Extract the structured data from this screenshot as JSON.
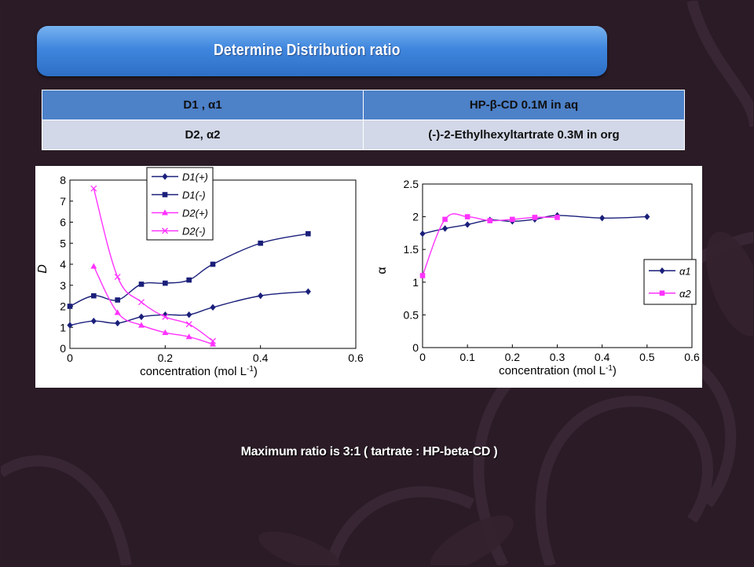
{
  "slide": {
    "title": "Determine Distribution ratio",
    "conclusion": "Maximum ratio is 3:1 ( tartrate : HP-beta-CD )",
    "colors": {
      "background": "#2a1b26",
      "banner": "#3f86de",
      "table_header": "#4d81c8",
      "table_row": "#d2d8e8"
    }
  },
  "table": {
    "rows": [
      [
        "D1 , α1",
        "HP-β-CD 0.1M  in aq"
      ],
      [
        "D2, α2",
        "(-)-2-Ethylhexyltartrate 0.3M  in org"
      ]
    ]
  },
  "chart_data": [
    {
      "type": "line",
      "xlabel": "concentration (mol L-1)",
      "ylabel": "D",
      "xlim": [
        0,
        0.6
      ],
      "ylim": [
        0,
        8
      ],
      "xticks": [
        0,
        0.2,
        0.4,
        0.6
      ],
      "xtick_labels": [
        "0",
        "0.2",
        "0.4",
        "0.6"
      ],
      "yticks": [
        0,
        1,
        2,
        3,
        4,
        5,
        6,
        7,
        8
      ],
      "ytick_labels": [
        "0",
        "1",
        "2",
        "3",
        "4",
        "5",
        "6",
        "7",
        "8"
      ],
      "legend_position": "top-right",
      "series": [
        {
          "name": "D1(+)",
          "color": "#1a1f7a",
          "marker": "diamond",
          "x": [
            0,
            0.05,
            0.1,
            0.15,
            0.2,
            0.25,
            0.3,
            0.4,
            0.5
          ],
          "y": [
            1.1,
            1.3,
            1.2,
            1.5,
            1.6,
            1.6,
            1.95,
            2.5,
            2.7
          ]
        },
        {
          "name": "D1(-)",
          "color": "#1a1f7a",
          "marker": "square",
          "x": [
            0,
            0.05,
            0.1,
            0.15,
            0.2,
            0.25,
            0.3,
            0.4,
            0.5
          ],
          "y": [
            2.0,
            2.5,
            2.3,
            3.05,
            3.1,
            3.25,
            4.0,
            5.0,
            5.45
          ]
        },
        {
          "name": "D2(+)",
          "color": "#ff33ff",
          "marker": "triangle",
          "x": [
            0.05,
            0.1,
            0.15,
            0.2,
            0.25,
            0.3
          ],
          "y": [
            3.9,
            1.7,
            1.1,
            0.75,
            0.55,
            0.2
          ]
        },
        {
          "name": "D2(-)",
          "color": "#ff33ff",
          "marker": "x",
          "x": [
            0.05,
            0.1,
            0.15,
            0.2,
            0.25,
            0.3
          ],
          "y": [
            7.6,
            3.4,
            2.2,
            1.5,
            1.15,
            0.35
          ]
        }
      ]
    },
    {
      "type": "line",
      "xlabel": "concentration (mol L-1)",
      "ylabel": "α",
      "xlim": [
        0,
        0.6
      ],
      "ylim": [
        0,
        2.5
      ],
      "xticks": [
        0,
        0.1,
        0.2,
        0.3,
        0.4,
        0.5,
        0.6
      ],
      "xtick_labels": [
        "0",
        "0.1",
        "0.2",
        "0.3",
        "0.4",
        "0.5",
        "0.6"
      ],
      "yticks": [
        0,
        0.5,
        1,
        1.5,
        2,
        2.5
      ],
      "ytick_labels": [
        "0",
        "0.5",
        "1",
        "1.5",
        "2",
        "2.5"
      ],
      "legend_position": "bottom-right",
      "series": [
        {
          "name": "α1",
          "color": "#1a1f7a",
          "marker": "diamond",
          "x": [
            0,
            0.05,
            0.1,
            0.15,
            0.2,
            0.25,
            0.3,
            0.4,
            0.5
          ],
          "y": [
            1.74,
            1.82,
            1.88,
            1.95,
            1.93,
            1.96,
            2.02,
            1.98,
            2.0
          ]
        },
        {
          "name": "α2",
          "color": "#ff33ff",
          "marker": "square",
          "x": [
            0,
            0.05,
            0.1,
            0.15,
            0.2,
            0.25,
            0.3
          ],
          "y": [
            1.1,
            1.96,
            2.0,
            1.94,
            1.96,
            1.99,
            1.99
          ]
        }
      ]
    }
  ]
}
